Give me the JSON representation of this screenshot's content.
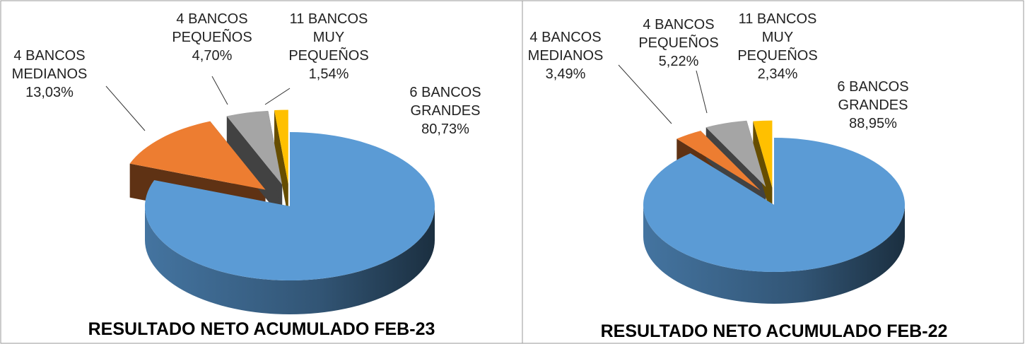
{
  "chart_data": [
    {
      "type": "pie3d",
      "title": "RESULTADO NETO  ACUMULADO FEB-23",
      "categories": [
        "6 BANCOS GRANDES",
        "4 BANCOS MEDIANOS",
        "4 BANCOS PEQUEÑOS",
        "11 BANCOS MUY PEQUEÑOS"
      ],
      "values": [
        80.73,
        13.03,
        4.7,
        1.54
      ],
      "value_labels": [
        "80,73%",
        "13,03%",
        "4,70%",
        "1,54%"
      ],
      "colors": [
        "#5b9bd5",
        "#ed7d31",
        "#a5a5a5",
        "#ffc000"
      ]
    },
    {
      "type": "pie3d",
      "title": "RESULTADO NETO  ACUMULADO FEB-22",
      "categories": [
        "6 BANCOS GRANDES",
        "4 BANCOS MEDIANOS",
        "4 BANCOS PEQUEÑOS",
        "11 BANCOS MUY PEQUEÑOS"
      ],
      "values": [
        88.95,
        3.49,
        5.22,
        2.34
      ],
      "value_labels": [
        "88,95%",
        "3,49%",
        "5,22%",
        "2,34%"
      ],
      "colors": [
        "#5b9bd5",
        "#ed7d31",
        "#a5a5a5",
        "#ffc000"
      ]
    }
  ]
}
